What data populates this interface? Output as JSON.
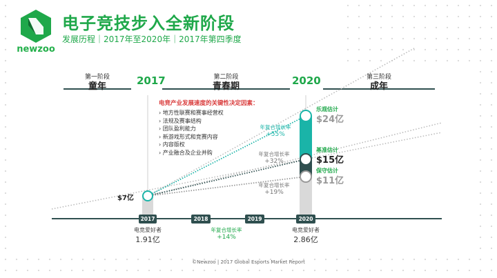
{
  "brand": {
    "name": "newzoo",
    "accent": "#1fa84a",
    "dark": "#2f4f4f",
    "teal": "#1ab4a8"
  },
  "header": {
    "title": "电子竞技步入全新阶段",
    "subtitle": "发展历程｜2017年至2020年｜2017年第四季度"
  },
  "phases": [
    {
      "label": "第一阶段",
      "name": "童年"
    },
    {
      "label": "第二阶段",
      "name": "青春期"
    },
    {
      "label": "第三阶段",
      "name": "成年"
    }
  ],
  "years": {
    "start": "2017",
    "end": "2020"
  },
  "factors": {
    "title": "电竞产业发展速度的关键性决定因素：",
    "items": [
      "地方性联赛和赛事经营权",
      "法规及赛事结构",
      "团队盈利能力",
      "新游戏形式和竞赛内容",
      "内容版权",
      "产业融合及企业并购"
    ]
  },
  "estimates": [
    {
      "label": "乐观估计",
      "cagr_label": "年复合增长率",
      "cagr": "+55%",
      "value": "$24亿",
      "value_num": 24,
      "color": "#1ab4a8"
    },
    {
      "label": "基准估计",
      "cagr_label": "年复合增长率",
      "cagr": "+32%",
      "value": "$15亿",
      "value_num": 15,
      "color": "#2f4f4f"
    },
    {
      "label": "保守估计",
      "cagr_label": "年复合增长率",
      "cagr": "+19%",
      "value": "$11亿",
      "value_num": 11,
      "color": "#999999"
    }
  ],
  "start_value": "$7亿",
  "enthusiasts": {
    "start": {
      "label": "电竞爱好者",
      "value": "1.91亿"
    },
    "end": {
      "label": "电竞爱好者",
      "value": "2.86亿"
    },
    "cagr_label": "年复合增长率",
    "cagr": "+14%"
  },
  "timeline": [
    "2017",
    "2018",
    "2019",
    "2020"
  ],
  "footer": "©Newzoo | 2017 Global Esports Market Report"
}
